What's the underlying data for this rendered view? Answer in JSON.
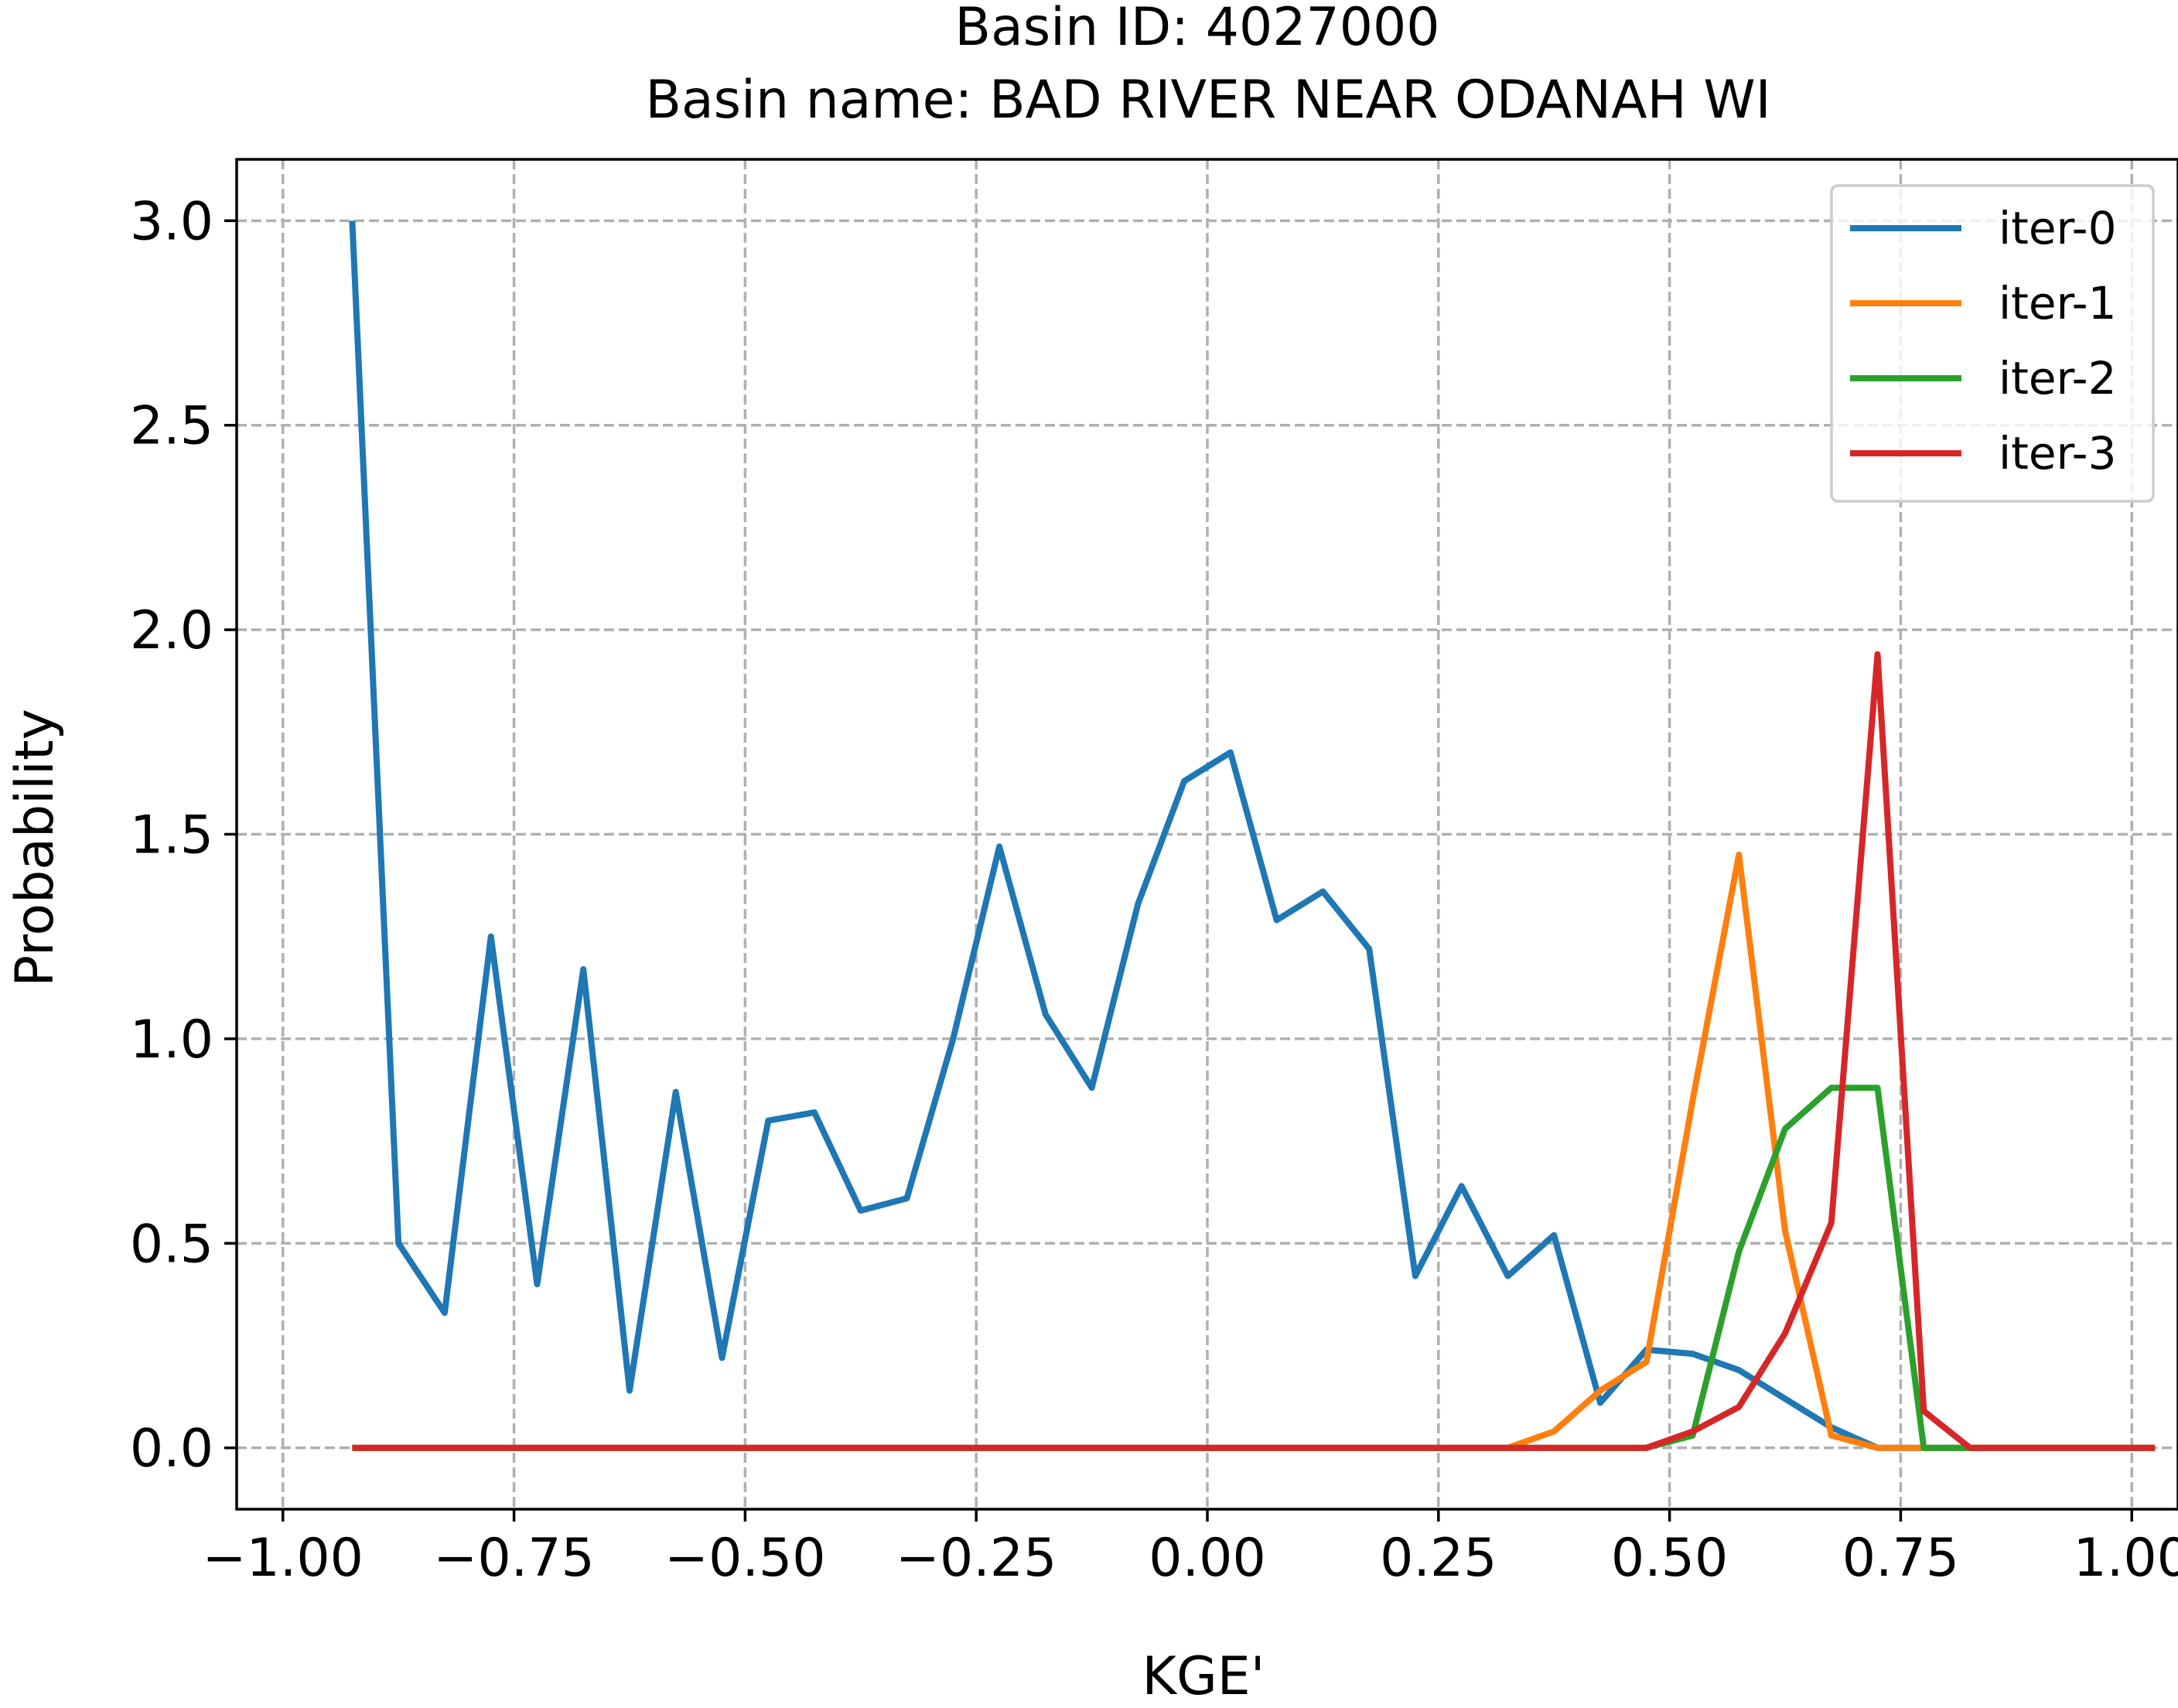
{
  "chart_data": {
    "type": "line",
    "title": "Basin ID: 4027000",
    "subtitle": "Basin name: BAD RIVER NEAR ODANAH WI",
    "xlabel": "KGE'",
    "ylabel": "Probability",
    "xlim": [
      -1.05,
      1.05
    ],
    "ylim": [
      -0.15,
      3.15
    ],
    "grid": true,
    "legend_position": "top-right",
    "x_ticks": [
      -1.0,
      -0.75,
      -0.5,
      -0.25,
      0.0,
      0.25,
      0.5,
      0.75,
      1.0
    ],
    "x_tick_labels": [
      "−1.00",
      "−0.75",
      "−0.50",
      "−0.25",
      "0.00",
      "0.25",
      "0.50",
      "0.75",
      "1.00"
    ],
    "y_ticks": [
      0.0,
      0.5,
      1.0,
      1.5,
      2.0,
      2.5,
      3.0
    ],
    "y_tick_labels": [
      "0.0",
      "0.5",
      "1.0",
      "1.5",
      "2.0",
      "2.5",
      "3.0"
    ],
    "x": [
      -0.925,
      -0.875,
      -0.825,
      -0.775,
      -0.725,
      -0.675,
      -0.625,
      -0.575,
      -0.525,
      -0.475,
      -0.425,
      -0.375,
      -0.325,
      -0.275,
      -0.225,
      -0.175,
      -0.125,
      -0.075,
      -0.025,
      0.025,
      0.075,
      0.125,
      0.175,
      0.225,
      0.275,
      0.325,
      0.375,
      0.425,
      0.475,
      0.525,
      0.575,
      0.625,
      0.675,
      0.725,
      0.775,
      0.825,
      0.875,
      0.925,
      0.975,
      1.025
    ],
    "series": [
      {
        "name": "iter-0",
        "color": "#1f77b4",
        "values": [
          3.0,
          0.5,
          0.33,
          1.25,
          0.4,
          1.17,
          0.14,
          0.87,
          0.22,
          0.8,
          0.82,
          0.58,
          0.61,
          1.0,
          1.47,
          1.06,
          0.88,
          1.33,
          1.63,
          1.7,
          1.29,
          1.36,
          1.22,
          0.42,
          0.64,
          0.42,
          0.52,
          0.11,
          0.24,
          0.23,
          0.19,
          0.12,
          0.05,
          0.0,
          0.0,
          0.0,
          0.0,
          0.0,
          0.0,
          0.0
        ]
      },
      {
        "name": "iter-1",
        "color": "#ff7f0e",
        "values": [
          0.0,
          0.0,
          0.0,
          0.0,
          0.0,
          0.0,
          0.0,
          0.0,
          0.0,
          0.0,
          0.0,
          0.0,
          0.0,
          0.0,
          0.0,
          0.0,
          0.0,
          0.0,
          0.0,
          0.0,
          0.0,
          0.0,
          0.0,
          0.0,
          0.0,
          0.0,
          0.04,
          0.14,
          0.21,
          0.85,
          1.45,
          0.53,
          0.03,
          0.0,
          0.0,
          0.0,
          0.0,
          0.0,
          0.0,
          0.0
        ]
      },
      {
        "name": "iter-2",
        "color": "#2ca02c",
        "values": [
          0.0,
          0.0,
          0.0,
          0.0,
          0.0,
          0.0,
          0.0,
          0.0,
          0.0,
          0.0,
          0.0,
          0.0,
          0.0,
          0.0,
          0.0,
          0.0,
          0.0,
          0.0,
          0.0,
          0.0,
          0.0,
          0.0,
          0.0,
          0.0,
          0.0,
          0.0,
          0.0,
          0.0,
          0.0,
          0.03,
          0.48,
          0.78,
          0.88,
          0.88,
          0.0,
          0.0,
          0.0,
          0.0,
          0.0,
          0.0
        ]
      },
      {
        "name": "iter-3",
        "color": "#d62728",
        "values": [
          0.0,
          0.0,
          0.0,
          0.0,
          0.0,
          0.0,
          0.0,
          0.0,
          0.0,
          0.0,
          0.0,
          0.0,
          0.0,
          0.0,
          0.0,
          0.0,
          0.0,
          0.0,
          0.0,
          0.0,
          0.0,
          0.0,
          0.0,
          0.0,
          0.0,
          0.0,
          0.0,
          0.0,
          0.0,
          0.04,
          0.1,
          0.28,
          0.55,
          1.94,
          0.09,
          0.0,
          0.0,
          0.0,
          0.0,
          0.0
        ]
      }
    ]
  }
}
